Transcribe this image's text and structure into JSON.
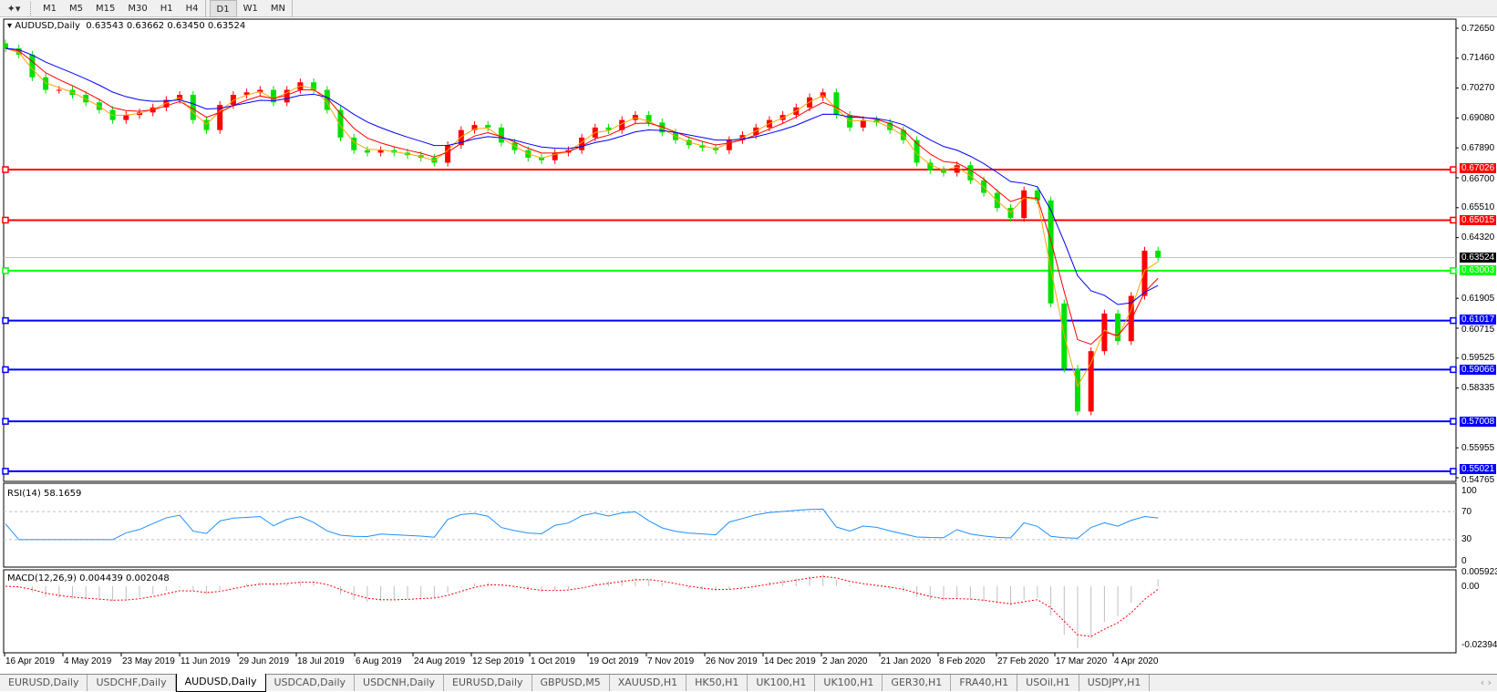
{
  "toolbar": {
    "timeframes": [
      "M1",
      "M5",
      "M15",
      "M30",
      "H1",
      "H4"
    ],
    "timeframes2": [
      "D1",
      "W1",
      "MN"
    ],
    "active": "D1"
  },
  "chart": {
    "header": "AUDUSD,Daily",
    "ohlc": "0.63543 0.63662 0.63450 0.63524",
    "price_ticks": [
      "0.72650",
      "0.71460",
      "0.70270",
      "0.69080",
      "0.67890",
      "0.66700",
      "0.65510",
      "0.64320",
      "0.61905",
      "0.60715",
      "0.59525",
      "0.58335",
      "0.55955",
      "0.54765"
    ],
    "current_price": "0.63524",
    "levels": [
      {
        "value": "0.67026",
        "color": "#ff0000"
      },
      {
        "value": "0.65015",
        "color": "#ff0000"
      },
      {
        "value": "0.63003",
        "color": "#00ff00"
      },
      {
        "value": "0.61017",
        "color": "#0000ff"
      },
      {
        "value": "0.59066",
        "color": "#0000ff"
      },
      {
        "value": "0.57008",
        "color": "#0000ff"
      },
      {
        "value": "0.55021",
        "color": "#0000ff"
      }
    ],
    "colors": {
      "up": "#ff0000",
      "down": "#00e000",
      "ma_fast": "#ffa500",
      "ma_mid": "#ff0000",
      "ma_slow": "#0000ff",
      "rsi": "#1e90ff",
      "macd_signal": "#ff0000",
      "macd_hist": "#c0c0c0"
    },
    "dates": [
      "16 Apr 2019",
      "4 May 2019",
      "23 May 2019",
      "11 Jun 2019",
      "29 Jun 2019",
      "18 Jul 2019",
      "6 Aug 2019",
      "24 Aug 2019",
      "12 Sep 2019",
      "1 Oct 2019",
      "19 Oct 2019",
      "7 Nov 2019",
      "26 Nov 2019",
      "14 Dec 2019",
      "2 Jan 2020",
      "21 Jan 2020",
      "8 Feb 2020",
      "27 Feb 2020",
      "17 Mar 2020",
      "4 Apr 2020"
    ]
  },
  "chart_data": {
    "type": "candlestick",
    "closes": [
      0.7185,
      0.716,
      0.707,
      0.702,
      0.702,
      0.7,
      0.697,
      0.694,
      0.69,
      0.692,
      0.693,
      0.695,
      0.698,
      0.7,
      0.69,
      0.686,
      0.696,
      0.7,
      0.701,
      0.702,
      0.697,
      0.702,
      0.705,
      0.702,
      0.694,
      0.683,
      0.678,
      0.677,
      0.678,
      0.677,
      0.676,
      0.675,
      0.673,
      0.68,
      0.686,
      0.688,
      0.687,
      0.681,
      0.678,
      0.675,
      0.674,
      0.677,
      0.678,
      0.683,
      0.687,
      0.686,
      0.69,
      0.692,
      0.689,
      0.685,
      0.682,
      0.68,
      0.679,
      0.678,
      0.682,
      0.684,
      0.687,
      0.69,
      0.692,
      0.695,
      0.699,
      0.701,
      0.692,
      0.687,
      0.69,
      0.689,
      0.686,
      0.682,
      0.673,
      0.67,
      0.669,
      0.672,
      0.666,
      0.661,
      0.655,
      0.651,
      0.662,
      0.658,
      0.617,
      0.591,
      0.574,
      0.598,
      0.613,
      0.602,
      0.62,
      0.638,
      0.63524
    ],
    "ylim": [
      0.54765,
      0.7265
    ]
  },
  "rsi": {
    "label": "RSI(14) 58.1659",
    "ticks": [
      "100",
      "70",
      "30",
      "0"
    ]
  },
  "macd": {
    "label": "MACD(12,26,9) 0.004439 0.002048",
    "ticks": [
      "0.005923",
      "0.00",
      "-0.023944"
    ]
  },
  "tabs": [
    "EURUSD,Daily",
    "USDCHF,Daily",
    "AUDUSD,Daily",
    "USDCAD,Daily",
    "USDCNH,Daily",
    "EURUSD,Daily",
    "GBPUSD,M5",
    "XAUUSD,H1",
    "HK50,H1",
    "UK100,H1",
    "UK100,H1",
    "GER30,H1",
    "FRA40,H1",
    "USOil,H1",
    "USDJPY,H1"
  ],
  "active_tab": 2
}
